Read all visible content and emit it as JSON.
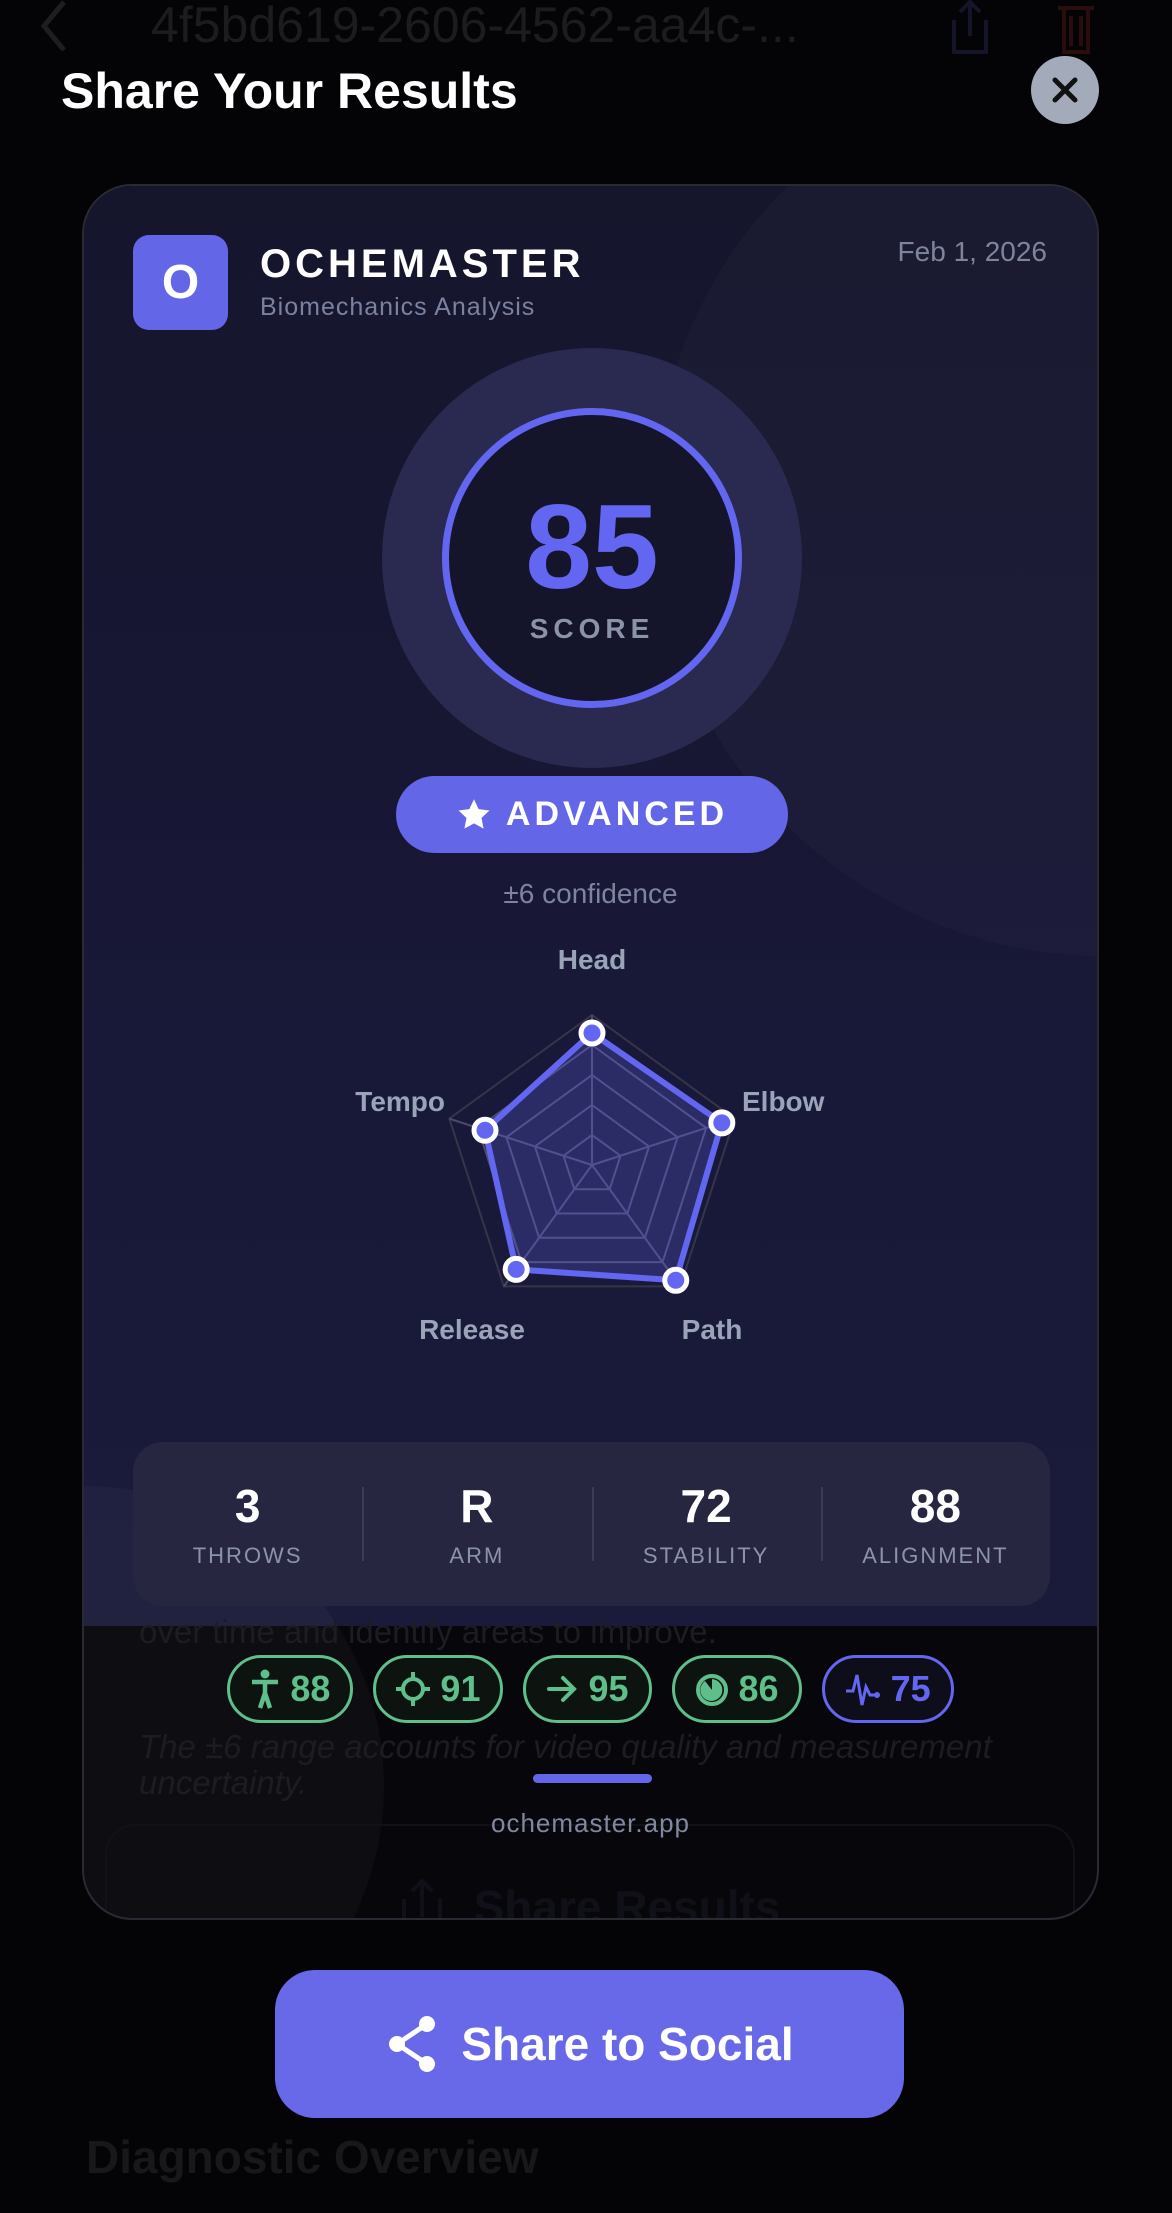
{
  "background": {
    "nav_title": "4f5bd619-2606-4562-aa4c-...",
    "text_line1": "over time and identify areas to improve.",
    "text_note": "The ±6 range accounts for video quality and measurement uncertainty.",
    "share_results_label": "Share Results",
    "section_title": "Diagnostic Overview"
  },
  "sheet": {
    "title": "Share Your Results",
    "close_icon": "xmark-icon"
  },
  "card": {
    "logo_letter": "O",
    "brand": "OCHEMASTER",
    "subtitle": "Biomechanics Analysis",
    "date": "Feb 1, 2026",
    "score": "85",
    "score_label": "SCORE",
    "level": "ADVANCED",
    "confidence": "±6 confidence",
    "radar": {
      "axes": [
        "Head",
        "Elbow",
        "Path",
        "Release",
        "Tempo"
      ],
      "values": [
        88,
        91,
        95,
        86,
        75
      ],
      "max": 100,
      "rings": 5
    },
    "stats": [
      {
        "value": "3",
        "label": "THROWS"
      },
      {
        "value": "R",
        "label": "ARM"
      },
      {
        "value": "72",
        "label": "STABILITY"
      },
      {
        "value": "88",
        "label": "ALIGNMENT"
      }
    ],
    "pills": [
      {
        "icon": "figure-icon",
        "value": "88",
        "color": "#5fbf8a"
      },
      {
        "icon": "crosshair-icon",
        "value": "91",
        "color": "#5fbf8a"
      },
      {
        "icon": "arrow-right-icon",
        "value": "95",
        "color": "#5fbf8a"
      },
      {
        "icon": "timer-icon",
        "value": "86",
        "color": "#5fbf8a"
      },
      {
        "icon": "waveform-icon",
        "value": "75",
        "color": "#6366f1"
      }
    ],
    "url": "ochemaster.app"
  },
  "share_button": {
    "label": "Share to Social",
    "icon": "share-icon"
  },
  "colors": {
    "accent": "#6366f1",
    "good": "#5fbf8a"
  }
}
